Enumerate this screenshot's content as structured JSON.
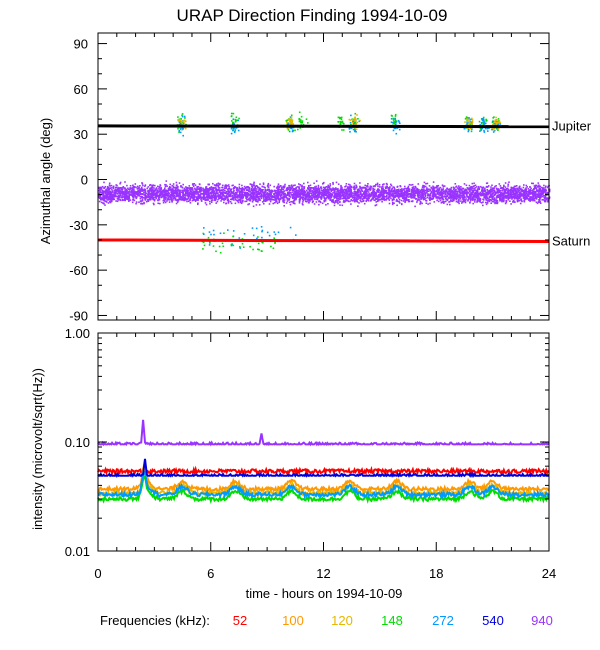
{
  "chart_data": [
    {
      "type": "scatter",
      "title": "URAP Direction Finding  1994-10-09",
      "ylabel": "Azimuthal angle (deg)",
      "xlim": [
        0,
        24
      ],
      "ylim": [
        -93,
        97
      ],
      "yticks": [
        90,
        60,
        30,
        0,
        -30,
        -60,
        -90
      ],
      "ytick_labels": [
        "90",
        "60",
        "30",
        "0",
        "-30",
        "-60",
        "-90"
      ],
      "reference_lines": [
        {
          "label": "Jupiter",
          "y_start": 35.5,
          "y_end": 35.0,
          "color": "#000000"
        },
        {
          "label": "Saturn",
          "y_start": -40.0,
          "y_end": -41.0,
          "color": "#ff0000"
        }
      ],
      "point_clusters": [
        {
          "series": "940",
          "x_range": [
            0,
            24
          ],
          "y_center": -9,
          "y_spread": 11,
          "density": "very high"
        },
        {
          "series": "148",
          "x_centers": [
            4.4,
            7.2,
            10.2,
            10.8,
            12.9,
            13.6,
            15.8,
            19.7,
            20.5,
            21.1
          ],
          "y_center": 38,
          "y_spread": 8
        },
        {
          "series": "272",
          "x_centers": [
            4.4,
            7.2,
            10.2,
            13.6,
            15.8,
            19.7,
            20.5,
            21.1
          ],
          "y_center": 36,
          "y_spread": 8
        },
        {
          "series": "120",
          "x_centers": [
            4.4,
            10.2,
            13.6,
            19.7,
            21.1
          ],
          "y_center": 38,
          "y_spread": 6
        },
        {
          "series": "272",
          "x_range": [
            5.5,
            10.5
          ],
          "y_center": -37,
          "y_spread": 10
        },
        {
          "series": "148",
          "x_range": [
            5.5,
            9.5
          ],
          "y_center": -42,
          "y_spread": 10
        }
      ]
    },
    {
      "type": "line",
      "ylabel": "intensity (microvolt/sqrt(Hz))",
      "xlabel": "time - hours on 1994-10-09",
      "x_ticks": [
        0,
        6,
        12,
        18,
        24
      ],
      "x_tick_labels": [
        "0",
        "6",
        "12",
        "18",
        "24"
      ],
      "y_scale": "log",
      "ylim": [
        0.01,
        1.0
      ],
      "y_ticks": [
        1.0,
        0.1,
        0.01
      ],
      "y_tick_labels": [
        "1.00",
        "0.10",
        "0.01"
      ],
      "series": [
        {
          "name": "52",
          "color": "#ff0000",
          "baseline": 0.054
        },
        {
          "name": "100",
          "color": "#ff9900",
          "baseline": 0.037
        },
        {
          "name": "120",
          "color": "#e6b800",
          "baseline": 0.034
        },
        {
          "name": "148",
          "color": "#00dd00",
          "baseline": 0.03
        },
        {
          "name": "272",
          "color": "#0099ff",
          "baseline": 0.033
        },
        {
          "name": "540",
          "color": "#0000dd",
          "baseline": 0.049
        },
        {
          "name": "940",
          "color": "#9933ff",
          "baseline": 0.095
        }
      ],
      "events": [
        {
          "x": 2.4,
          "series": "940",
          "peak": 0.16
        },
        {
          "x": 2.5,
          "series": "540",
          "peak": 0.07
        },
        {
          "x": 8.7,
          "series": "940",
          "peak": 0.12
        }
      ]
    }
  ],
  "legend": {
    "label": "Frequencies (kHz):",
    "items": [
      {
        "text": "52",
        "color": "#ff0000"
      },
      {
        "text": "100",
        "color": "#ff9900"
      },
      {
        "text": "120",
        "color": "#e6b800"
      },
      {
        "text": "148",
        "color": "#00dd00"
      },
      {
        "text": "272",
        "color": "#0099ff"
      },
      {
        "text": "540",
        "color": "#0000dd"
      },
      {
        "text": "940",
        "color": "#9933ff"
      }
    ]
  }
}
